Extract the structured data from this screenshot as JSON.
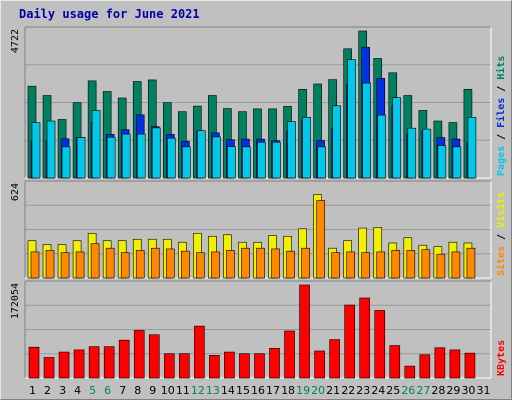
{
  "title": "Daily usage for June 2021",
  "chart_data": [
    {
      "type": "bar",
      "name": "hits-files-pages",
      "ymax_label": "4722",
      "ylim": [
        0,
        4722
      ],
      "legend": [
        {
          "text": "Pages",
          "color": "#00c8e8"
        },
        {
          "text": "Files",
          "color": "#0030e0"
        },
        {
          "text": "Hits",
          "color": "#008060"
        }
      ],
      "categories": [
        "1",
        "2",
        "3",
        "4",
        "5",
        "6",
        "7",
        "8",
        "9",
        "10",
        "11",
        "12",
        "13",
        "14",
        "15",
        "16",
        "17",
        "18",
        "19",
        "20",
        "21",
        "22",
        "23",
        "24",
        "25",
        "26",
        "27",
        "28",
        "29",
        "30",
        "31"
      ],
      "weekend_days": [
        "5",
        "6",
        "12",
        "13",
        "19",
        "20",
        "26",
        "27"
      ],
      "series": [
        {
          "name": "Hits",
          "color": "#008060",
          "values": [
            2950,
            2650,
            1880,
            2420,
            3120,
            2780,
            2570,
            3100,
            3150,
            2420,
            2130,
            2310,
            2650,
            2230,
            2130,
            2220,
            2220,
            2300,
            2850,
            3020,
            3160,
            4150,
            4722,
            3840,
            3380,
            2650,
            2170,
            1830,
            1780,
            2850,
            null
          ]
        },
        {
          "name": "Files",
          "color": "#0030e0",
          "values": [
            1200,
            1200,
            1260,
            1300,
            1800,
            1400,
            1550,
            2030,
            1650,
            1400,
            1180,
            1500,
            1450,
            1230,
            1250,
            1250,
            1200,
            1500,
            1850,
            1200,
            1580,
            3000,
            4200,
            3200,
            2320,
            1400,
            1500,
            1300,
            1250,
            1150,
            null
          ]
        },
        {
          "name": "Pages",
          "color": "#00c8e8",
          "values": [
            1780,
            1830,
            1000,
            1300,
            2170,
            1310,
            1410,
            1410,
            1610,
            1280,
            1000,
            1520,
            1320,
            1010,
            1000,
            1150,
            1150,
            1810,
            1950,
            1000,
            2320,
            3800,
            3050,
            2020,
            2580,
            1600,
            1570,
            1040,
            1000,
            1950,
            null
          ]
        }
      ]
    },
    {
      "type": "bar",
      "name": "visits-sites",
      "ymax_label": "624",
      "ylim": [
        0,
        624
      ],
      "legend": [
        {
          "text": "Sites",
          "color": "#ff8800"
        },
        {
          "text": "Visits",
          "color": "#f0f000"
        }
      ],
      "series": [
        {
          "name": "Visits",
          "color": "#f0f000",
          "values": [
            250,
            225,
            225,
            250,
            300,
            250,
            250,
            260,
            260,
            260,
            240,
            300,
            280,
            290,
            240,
            240,
            285,
            280,
            330,
            560,
            200,
            250,
            335,
            340,
            235,
            270,
            220,
            210,
            240,
            235,
            null
          ]
        },
        {
          "name": "Sites",
          "color": "#ff8800",
          "values": [
            175,
            185,
            170,
            175,
            230,
            200,
            170,
            185,
            200,
            195,
            180,
            170,
            175,
            185,
            200,
            200,
            195,
            180,
            200,
            520,
            170,
            175,
            170,
            175,
            185,
            185,
            190,
            160,
            175,
            200,
            null
          ]
        }
      ]
    },
    {
      "type": "bar",
      "name": "kbytes",
      "ymax_label": "172054",
      "ylim": [
        0,
        172054
      ],
      "legend": [
        {
          "text": "KBytes",
          "color": "#ff0000"
        }
      ],
      "series": [
        {
          "name": "KBytes",
          "color": "#ff0000",
          "values": [
            57000,
            38000,
            48000,
            52000,
            58000,
            58000,
            70000,
            88000,
            80000,
            45000,
            45000,
            96000,
            42000,
            48000,
            45000,
            45000,
            55000,
            87000,
            172054,
            50000,
            71000,
            135000,
            148000,
            125000,
            60000,
            22000,
            43000,
            56000,
            52000,
            46000,
            null
          ]
        }
      ]
    }
  ]
}
